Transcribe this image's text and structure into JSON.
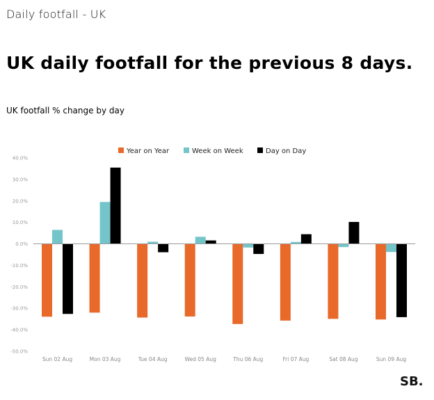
{
  "page": {
    "kicker": "Daily footfall - UK",
    "headline": "UK daily footfall for the previous 8 days.",
    "subtitle": "UK footfall % change by day",
    "logo": "SB."
  },
  "chart_data": {
    "type": "bar",
    "title": "UK footfall % change by day",
    "xlabel": "",
    "ylabel": "",
    "ylim": [
      -50,
      40
    ],
    "yticks": [
      "40.0%",
      "30.0%",
      "20.0%",
      "10.0%",
      "0.0%",
      "-10.0%",
      "-20.0%",
      "-30.0%",
      "-40.0%",
      "-50.0%"
    ],
    "legend_position": "top-center",
    "categories": [
      "Sun 02 Aug",
      "Mon 03 Aug",
      "Tue 04 Aug",
      "Wed 05 Aug",
      "Thu 06 Aug",
      "Fri 07 Aug",
      "Sat 08 Aug",
      "Sun 09 Aug"
    ],
    "series": [
      {
        "name": "Year on Year",
        "color": "#E8692A",
        "values": [
          -33.9,
          -32.0,
          -34.3,
          -33.8,
          -37.3,
          -35.7,
          -34.9,
          -35.2
        ]
      },
      {
        "name": "Week on Week",
        "color": "#74C5C9",
        "values": [
          6.5,
          19.5,
          1.0,
          3.3,
          -1.7,
          0.9,
          -1.5,
          -3.8
        ]
      },
      {
        "name": "Day on Day",
        "color": "#000000",
        "values": [
          -32.6,
          35.5,
          -3.9,
          1.6,
          -4.7,
          4.5,
          10.2,
          -34.1
        ]
      }
    ]
  }
}
